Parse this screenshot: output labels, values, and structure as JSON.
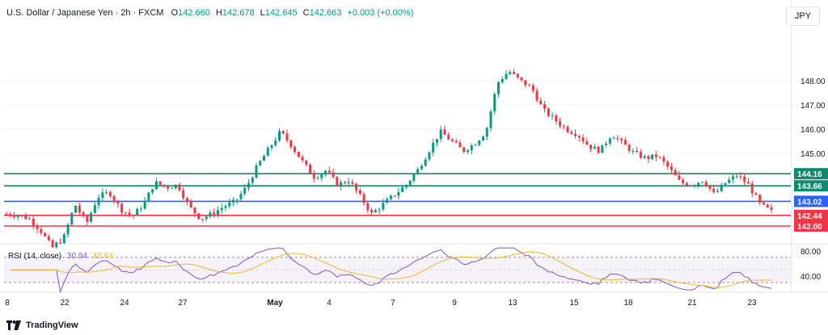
{
  "header": {
    "symbol": "U.S. Dollar / Japanese Yen · 2h · FXCM",
    "o_label": "O",
    "o_value": "142.660",
    "h_label": "H",
    "h_value": "142.678",
    "l_label": "L",
    "l_value": "142.645",
    "c_label": "C",
    "c_value": "142.663",
    "change": "+0.003 (+0.00%)"
  },
  "currency": "JPY",
  "rsi": {
    "title": "RSI (14, close)",
    "value1": "30.94",
    "value2": "42.64"
  },
  "footer": {
    "brand": "TradingView"
  },
  "colors": {
    "up": "#089981",
    "down": "#f23645",
    "teal": "#0e8a6e",
    "blue": "#2962ff",
    "red": "#f23645",
    "rsi": "#7e57c2",
    "rsi_ma": "#f0b62d"
  },
  "chart_data": {
    "type": "candlestick",
    "y_axis_labels": [
      "148.00",
      "147.00",
      "146.00",
      "145.00"
    ],
    "rsi_axis_labels": [
      "80.00",
      "40.00"
    ],
    "x_axis_labels": [
      "8",
      "22",
      "24",
      "27",
      "May",
      "4",
      "7",
      "9",
      "13",
      "15",
      "18",
      "21",
      "23"
    ],
    "ylim": [
      141.7,
      148.9
    ],
    "levels": [
      {
        "label": "144.16",
        "value": 144.16,
        "color": "#0e8a6e"
      },
      {
        "label": "143.66",
        "value": 143.66,
        "color": "#0e8a6e"
      },
      {
        "label": "143.02",
        "value": 143.02,
        "color": "#2962ff"
      },
      {
        "label": "142.44",
        "value": 142.44,
        "color": "#f23645"
      },
      {
        "label": "142.00",
        "value": 142.0,
        "color": "#f23645"
      }
    ],
    "price_path": [
      142.5,
      142.45,
      142.3,
      141.8,
      141.1,
      141.5,
      142.9,
      142.1,
      143.2,
      143.4,
      142.7,
      142.4,
      142.9,
      143.8,
      143.6,
      143.7,
      142.8,
      142.3,
      142.5,
      142.8,
      143.0,
      143.6,
      144.5,
      145.2,
      145.9,
      145.3,
      144.6,
      144.0,
      144.3,
      143.7,
      143.9,
      143.2,
      142.5,
      142.9,
      143.3,
      143.7,
      144.3,
      145.1,
      145.9,
      145.5,
      145.1,
      145.4,
      145.9,
      147.9,
      148.4,
      148.0,
      147.7,
      146.8,
      146.4,
      146.0,
      145.8,
      145.3,
      145.1,
      145.8,
      145.4,
      145.0,
      144.8,
      144.9,
      144.4,
      143.8,
      143.7,
      143.9,
      143.3,
      143.8,
      144.1,
      143.7,
      142.9,
      142.6
    ]
  }
}
